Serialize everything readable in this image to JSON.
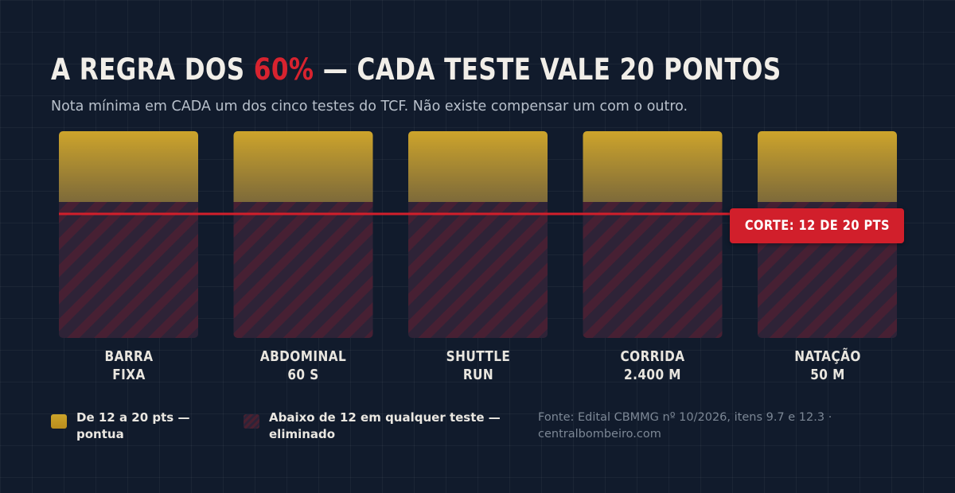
{
  "header": {
    "title_before": "A REGRA DOS ",
    "title_highlight": "60%",
    "title_after": " — CADA TESTE VALE 20 PONTOS",
    "subtitle": "Nota mínima em CADA um dos cinco testes do TCF. Não existe compensar um com o outro."
  },
  "chart_data": {
    "type": "bar",
    "categories": [
      [
        "BARRA",
        "FIXA"
      ],
      [
        "ABDOMINAL",
        "60 S"
      ],
      [
        "SHUTTLE",
        "RUN"
      ],
      [
        "CORRIDA",
        "2.400 M"
      ],
      [
        "NATAÇÃO",
        "50 M"
      ]
    ],
    "max_points": 20,
    "cutoff": 12,
    "cutoff_label": "CORTE: 12 DE 20 PTS",
    "colors": {
      "pass": "#c9a227",
      "fail": "#3a2036",
      "cutoff_line": "#d11f2b"
    }
  },
  "legend": {
    "pass": [
      "De 12 a 20 pts —",
      "pontua"
    ],
    "fail": [
      "Abaixo de 12 em qualquer teste —",
      "eliminado"
    ]
  },
  "source": [
    "Fonte: Edital CBMMG nº 10/2026, itens 9.7 e 12.3 ·",
    "centralbombeiro.com"
  ]
}
